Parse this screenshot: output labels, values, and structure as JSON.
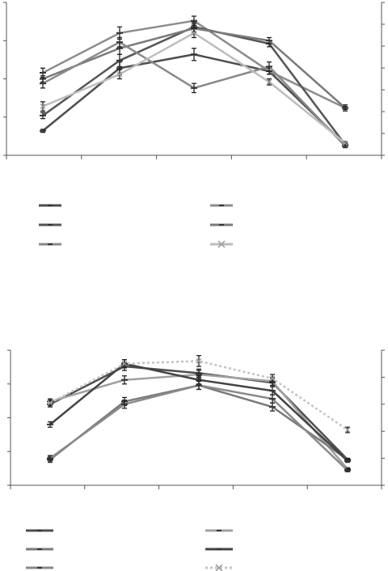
{
  "chart_data": [
    {
      "type": "line",
      "x": [
        1,
        2,
        3,
        4,
        5
      ],
      "ylim": [
        0,
        100
      ],
      "y2lim": [
        0,
        100
      ],
      "grid": false,
      "legend_position": "bottom",
      "series": [
        {
          "values": [
            16,
            57,
            66,
            55,
            7
          ],
          "errors": [
            1,
            4,
            4,
            2,
            1
          ],
          "color": "#4d4d4d",
          "marker": "dash",
          "line_style": "solid"
        },
        {
          "values": [
            54,
            80,
            88,
            55,
            31
          ],
          "errors": [
            3,
            4,
            3,
            2,
            2
          ],
          "color": "#8c8c8c",
          "marker": "dash",
          "line_style": "solid"
        },
        {
          "values": [
            26,
            62,
            84,
            73,
            7
          ],
          "errors": [
            2,
            4,
            3,
            2,
            1
          ],
          "color": "#555555",
          "marker": "dash",
          "line_style": "solid"
        },
        {
          "values": [
            50,
            70,
            83,
            75,
            31
          ],
          "errors": [
            2,
            4,
            3,
            2,
            1
          ],
          "color": "#7a7a7a",
          "marker": "dash",
          "line_style": "solid"
        },
        {
          "values": [
            47,
            74,
            44,
            58,
            6
          ],
          "errors": [
            3,
            3,
            3,
            3,
            1
          ],
          "color": "#8a8a8a",
          "marker": "dash",
          "line_style": "solid"
        },
        {
          "values": [
            32,
            53,
            80,
            48,
            8
          ],
          "errors": [
            3,
            3,
            3,
            2,
            1
          ],
          "color": "#bdbdbd",
          "marker": "x",
          "line_style": "solid"
        }
      ]
    },
    {
      "type": "line",
      "x": [
        1,
        2,
        3,
        4,
        5
      ],
      "ylim": [
        0,
        100
      ],
      "y2lim": [
        0,
        100
      ],
      "grid": false,
      "legend_position": "bottom",
      "series": [
        {
          "values": [
            60,
            88,
            83,
            76,
            19
          ],
          "errors": [
            2,
            3,
            3,
            3,
            1
          ],
          "color": "#4d4d4d",
          "marker": "dash",
          "line_style": "solid"
        },
        {
          "values": [
            62,
            78,
            82,
            77,
            12
          ],
          "errors": [
            2,
            3,
            3,
            3,
            1
          ],
          "color": "#a0a0a0",
          "marker": "dash",
          "line_style": "solid"
        },
        {
          "values": [
            19,
            62,
            74,
            58,
            19
          ],
          "errors": [
            2,
            3,
            3,
            3,
            1
          ],
          "color": "#7a7a7a",
          "marker": "dash",
          "line_style": "solid"
        },
        {
          "values": [
            45,
            90,
            78,
            70,
            18
          ],
          "errors": [
            2,
            3,
            3,
            3,
            1
          ],
          "color": "#444444",
          "marker": "dash",
          "line_style": "solid"
        },
        {
          "values": [
            20,
            60,
            74,
            64,
            11
          ],
          "errors": [
            2,
            3,
            3,
            3,
            1
          ],
          "color": "#8a8a8a",
          "marker": "dash",
          "line_style": "solid"
        },
        {
          "values": [
            61,
            90,
            92,
            79,
            41
          ],
          "errors": [
            2,
            3,
            4,
            3,
            2
          ],
          "color": "#c4c4c4",
          "marker": "x",
          "line_style": "dotted"
        }
      ]
    }
  ]
}
